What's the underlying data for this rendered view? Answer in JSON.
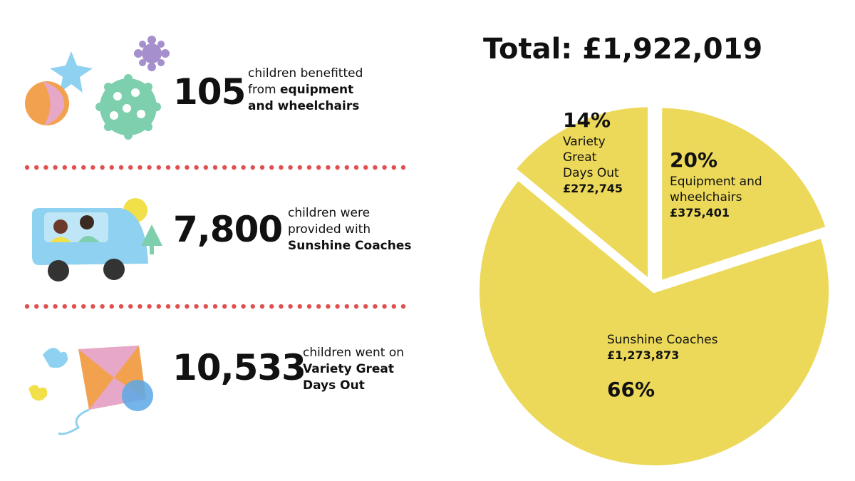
{
  "stats": [
    {
      "number": "105",
      "text": "children benefitted from",
      "bold": "equipment and wheelchairs"
    },
    {
      "number": "7,800",
      "text": "children were provided with",
      "bold": "Sunshine Coaches"
    },
    {
      "number": "10,533",
      "text": "children went on",
      "bold": "Variety Great Days Out"
    }
  ],
  "chart_data": {
    "type": "pie",
    "title": "Total: £1,922,019",
    "categories": [
      "Equipment and wheelchairs",
      "Sunshine Coaches",
      "Variety Great Days Out"
    ],
    "values": [
      20,
      66,
      14
    ],
    "value_labels": [
      "20%",
      "66%",
      "14%"
    ],
    "amounts": [
      "£375,401",
      "£1,273,873",
      "£272,745"
    ],
    "color": "#ecd95a"
  }
}
